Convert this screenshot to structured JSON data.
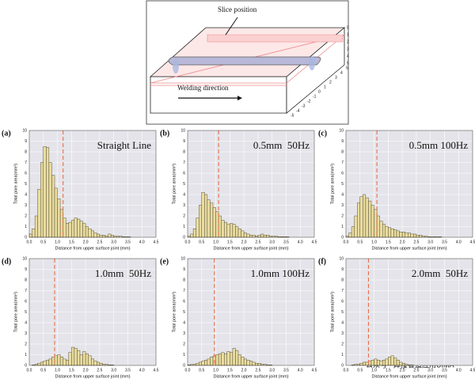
{
  "diagram": {
    "slice_label": "Slice position",
    "direction_label": "Welding direction",
    "vertical_scale": [
      "0",
      "1",
      "2",
      "3",
      "4",
      "5"
    ],
    "depth_scale": [
      "5",
      "4",
      "3",
      "2",
      "1",
      "0",
      "-1",
      "-2",
      "-3",
      "-4",
      "-5"
    ]
  },
  "watermark": "公众号 · 焊接智造应用UIMA",
  "chart_data": [
    {
      "type": "histogram",
      "panel": "(a)",
      "annotation": "Straight Line",
      "xlabel": "Distance from upper surface joint (mm)",
      "ylabel": "Total pore area(mm²)",
      "color": "#e9dca0",
      "edge": "#3a3420",
      "vline": 1.2,
      "vline_color": "#e8704a",
      "grid": true,
      "bins": [
        0,
        0.1,
        0.2,
        0.3,
        0.4,
        0.5,
        0.6,
        0.7,
        0.8,
        0.9,
        1.0,
        1.1,
        1.2,
        1.3,
        1.4,
        1.5,
        1.6,
        1.7,
        1.8,
        1.9,
        2.0,
        2.1,
        2.2,
        2.3,
        2.4,
        2.5,
        2.6,
        2.7,
        2.8,
        2.9,
        3.0,
        3.1,
        3.2,
        3.3,
        3.4,
        3.5,
        3.6
      ],
      "values": [
        0.3,
        0.8,
        2.0,
        4.5,
        7.0,
        8.5,
        8.4,
        7.0,
        5.8,
        4.6,
        3.6,
        2.6,
        1.8,
        1.3,
        1.4,
        1.6,
        1.8,
        1.7,
        1.5,
        1.3,
        1.0,
        0.8,
        0.6,
        0.4,
        0.3,
        0.2,
        0.2,
        0.1,
        0.3,
        0.2,
        0.1,
        0.1,
        0.1,
        0.05,
        0.05,
        0.05
      ],
      "xlim": [
        0,
        4.5
      ],
      "ylim": [
        0,
        10
      ],
      "yticks": [
        0,
        1,
        2,
        3,
        4,
        5,
        6,
        7,
        8,
        9,
        10
      ],
      "xticks": [
        {
          "value": 0,
          "label": "0.0"
        },
        {
          "value": 0.5,
          "label": "0.5"
        },
        {
          "value": 1,
          "label": "1.0"
        },
        {
          "value": 1.5,
          "label": "1.5"
        },
        {
          "value": 2,
          "label": "2.0"
        },
        {
          "value": 2.5,
          "label": "2.5"
        },
        {
          "value": 3,
          "label": "3.0"
        },
        {
          "value": 3.5,
          "label": "3.5"
        },
        {
          "value": 4,
          "label": "4.0"
        },
        {
          "value": 4.5,
          "label": "4.5"
        }
      ]
    },
    {
      "type": "histogram",
      "panel": "(b)",
      "annotation": "0.5mm  50Hz",
      "xlabel": "Distance from upper surface joint (mm)",
      "ylabel": "Total pore area(mm²)",
      "color": "#e9dca0",
      "edge": "#3a3420",
      "vline": 1.1,
      "vline_color": "#e8704a",
      "grid": true,
      "bins": [
        0,
        0.1,
        0.2,
        0.3,
        0.4,
        0.5,
        0.6,
        0.7,
        0.8,
        0.9,
        1.0,
        1.1,
        1.2,
        1.3,
        1.4,
        1.5,
        1.6,
        1.7,
        1.8,
        1.9,
        2.0,
        2.1,
        2.2,
        2.3,
        2.4,
        2.5,
        2.6,
        2.7,
        2.8,
        2.9,
        3.0,
        3.1,
        3.2,
        3.3,
        3.4,
        3.5,
        3.6
      ],
      "values": [
        0.1,
        0.3,
        0.8,
        1.8,
        3.0,
        4.2,
        4.0,
        3.5,
        3.2,
        2.8,
        2.4,
        2.0,
        1.6,
        1.4,
        1.2,
        1.3,
        1.2,
        1.0,
        0.8,
        0.6,
        0.4,
        0.3,
        0.2,
        0.2,
        0.1,
        0.2,
        0.3,
        0.2,
        0.2,
        0.1,
        0.1,
        0.1,
        0.05,
        0.05,
        0.05,
        0.05
      ],
      "xlim": [
        0,
        4.5
      ],
      "ylim": [
        0,
        10
      ],
      "yticks": [
        0,
        1,
        2,
        3,
        4,
        5,
        6,
        7,
        8,
        9,
        10
      ],
      "xticks": [
        {
          "value": 0,
          "label": "0.0"
        },
        {
          "value": 0.5,
          "label": "0.5"
        },
        {
          "value": 1,
          "label": "1.0"
        },
        {
          "value": 1.5,
          "label": "1.5"
        },
        {
          "value": 2,
          "label": "2.0"
        },
        {
          "value": 2.5,
          "label": "2.5"
        },
        {
          "value": 3,
          "label": "3.0"
        },
        {
          "value": 3.5,
          "label": "3.5"
        },
        {
          "value": 4,
          "label": "4.0"
        },
        {
          "value": 4.5,
          "label": "4.5"
        }
      ]
    },
    {
      "type": "histogram",
      "panel": "(c)",
      "annotation": "0.5mm 100Hz",
      "xlabel": "Distance from upper surface joint (mm)",
      "ylabel": "Total pore area(mm²)",
      "color": "#e9dca0",
      "edge": "#3a3420",
      "vline": 1.1,
      "vline_color": "#e8704a",
      "grid": true,
      "bins": [
        0,
        0.1,
        0.2,
        0.3,
        0.4,
        0.5,
        0.6,
        0.7,
        0.8,
        0.9,
        1.0,
        1.1,
        1.2,
        1.3,
        1.4,
        1.5,
        1.6,
        1.7,
        1.8,
        1.9,
        2.0,
        2.1,
        2.2,
        2.3,
        2.4,
        2.5,
        2.6,
        2.7,
        2.8,
        2.9,
        3.0,
        3.1,
        3.2,
        3.3,
        3.4,
        3.5,
        3.6
      ],
      "values": [
        0.1,
        0.4,
        1.0,
        2.0,
        3.2,
        3.8,
        4.0,
        3.7,
        3.4,
        3.0,
        2.6,
        2.0,
        1.5,
        1.2,
        1.0,
        0.9,
        0.8,
        0.7,
        0.6,
        0.5,
        0.5,
        0.4,
        0.4,
        0.3,
        0.3,
        0.2,
        0.2,
        0.1,
        0.1,
        0.05,
        0.05,
        0.05,
        0.05,
        0.05,
        0,
        0
      ],
      "xlim": [
        0,
        4.5
      ],
      "ylim": [
        0,
        10
      ],
      "yticks": [
        0,
        1,
        2,
        3,
        4,
        5,
        6,
        7,
        8,
        9,
        10
      ],
      "xticks": [
        {
          "value": 0,
          "label": "0.0"
        },
        {
          "value": 0.5,
          "label": "0.5"
        },
        {
          "value": 1,
          "label": "1.0"
        },
        {
          "value": 1.5,
          "label": "1.5"
        },
        {
          "value": 2,
          "label": "2.0"
        },
        {
          "value": 2.5,
          "label": "2.5"
        },
        {
          "value": 3,
          "label": "3.0"
        },
        {
          "value": 3.5,
          "label": "3.5"
        },
        {
          "value": 4,
          "label": "4.0"
        },
        {
          "value": 4.5,
          "label": "4.5"
        }
      ]
    },
    {
      "type": "histogram",
      "panel": "(d)",
      "annotation": "1.0mm  50Hz",
      "xlabel": "Distance from upper surface joint (mm)",
      "ylabel": "Total pore area(mm²)",
      "color": "#e9dca0",
      "edge": "#3a3420",
      "vline": 0.9,
      "vline_color": "#e8704a",
      "grid": true,
      "bins": [
        0,
        0.1,
        0.2,
        0.3,
        0.4,
        0.5,
        0.6,
        0.7,
        0.8,
        0.9,
        1.0,
        1.1,
        1.2,
        1.3,
        1.4,
        1.5,
        1.6,
        1.7,
        1.8,
        1.9,
        2.0,
        2.1,
        2.2,
        2.3,
        2.4,
        2.5,
        2.6,
        2.7,
        2.8,
        2.9,
        3.0,
        3.1,
        3.2,
        3.3,
        3.4,
        3.5,
        3.6
      ],
      "values": [
        0,
        0.05,
        0.1,
        0.2,
        0.3,
        0.4,
        0.5,
        0.6,
        0.8,
        0.9,
        1.0,
        0.8,
        0.6,
        0.5,
        1.2,
        1.7,
        1.6,
        1.4,
        1.0,
        1.3,
        1.1,
        0.9,
        0.6,
        0.4,
        0.3,
        0.2,
        0.1,
        0.1,
        0.05,
        0.05,
        0,
        0,
        0,
        0,
        0,
        0
      ],
      "xlim": [
        0,
        4.5
      ],
      "ylim": [
        0,
        10
      ],
      "yticks": [
        0,
        1,
        2,
        3,
        4,
        5,
        6,
        7,
        8,
        9,
        10
      ],
      "xticks": [
        {
          "value": 0,
          "label": "0.0"
        },
        {
          "value": 0.5,
          "label": "0.5"
        },
        {
          "value": 1,
          "label": "1.0"
        },
        {
          "value": 1.5,
          "label": "1.5"
        },
        {
          "value": 2,
          "label": "2.0"
        },
        {
          "value": 2.5,
          "label": "2.5"
        },
        {
          "value": 3,
          "label": "3.0"
        },
        {
          "value": 3.5,
          "label": "3.5"
        },
        {
          "value": 4,
          "label": "4.0"
        },
        {
          "value": 4.5,
          "label": "4.5"
        }
      ]
    },
    {
      "type": "histogram",
      "panel": "(e)",
      "annotation": "1.0mm 100Hz",
      "xlabel": "Distance from upper surface joint (mm)",
      "ylabel": "Total pore area(mm²)",
      "color": "#e9dca0",
      "edge": "#3a3420",
      "vline": 0.95,
      "vline_color": "#e8704a",
      "grid": true,
      "bins": [
        0,
        0.1,
        0.2,
        0.3,
        0.4,
        0.5,
        0.6,
        0.7,
        0.8,
        0.9,
        1.0,
        1.1,
        1.2,
        1.3,
        1.4,
        1.5,
        1.6,
        1.7,
        1.8,
        1.9,
        2.0,
        2.1,
        2.2,
        2.3,
        2.4,
        2.5,
        2.6,
        2.7,
        2.8,
        2.9,
        3.0,
        3.1,
        3.2,
        3.3,
        3.4,
        3.5,
        3.6
      ],
      "values": [
        0.05,
        0.1,
        0.1,
        0.2,
        0.3,
        0.4,
        0.5,
        0.6,
        0.8,
        0.9,
        1.0,
        1.1,
        1.2,
        1.1,
        1.3,
        1.2,
        1.6,
        1.4,
        1.0,
        0.8,
        0.6,
        0.5,
        0.4,
        0.3,
        0.2,
        0.2,
        0.1,
        0.1,
        0.05,
        0.05,
        0,
        0,
        0,
        0,
        0,
        0
      ],
      "xlim": [
        0,
        4.5
      ],
      "ylim": [
        0,
        10
      ],
      "yticks": [
        0,
        1,
        2,
        3,
        4,
        5,
        6,
        7,
        8,
        9,
        10
      ],
      "xticks": [
        {
          "value": 0,
          "label": "0.0"
        },
        {
          "value": 0.5,
          "label": "0.5"
        },
        {
          "value": 1,
          "label": "1.0"
        },
        {
          "value": 1.5,
          "label": "1.5"
        },
        {
          "value": 2,
          "label": "2.0"
        },
        {
          "value": 2.5,
          "label": "2.5"
        },
        {
          "value": 3,
          "label": "3.0"
        },
        {
          "value": 3.5,
          "label": "3.5"
        },
        {
          "value": 4,
          "label": "4.0"
        },
        {
          "value": 4.5,
          "label": "4.5"
        }
      ]
    },
    {
      "type": "histogram",
      "panel": "(f)",
      "annotation": "2.0mm  50Hz",
      "xlabel": "Distance from upper surface joint (mm)",
      "ylabel": "Total pore area(mm²)",
      "color": "#e9dca0",
      "edge": "#3a3420",
      "vline": 0.8,
      "vline_color": "#e8704a",
      "grid": true,
      "bins": [
        0,
        0.1,
        0.2,
        0.3,
        0.4,
        0.5,
        0.6,
        0.7,
        0.8,
        0.9,
        1.0,
        1.1,
        1.2,
        1.3,
        1.4,
        1.5,
        1.6,
        1.7,
        1.8,
        1.9,
        2.0,
        2.1,
        2.2,
        2.3,
        2.4,
        2.5,
        2.6,
        2.7,
        2.8,
        2.9,
        3.0,
        3.1,
        3.2,
        3.3,
        3.4,
        3.5,
        3.6
      ],
      "values": [
        0,
        0,
        0.05,
        0.1,
        0.1,
        0.2,
        0.3,
        0.3,
        0.4,
        0.5,
        0.6,
        0.5,
        0.4,
        0.5,
        0.6,
        0.8,
        0.9,
        0.7,
        0.5,
        0.3,
        0.2,
        0.1,
        0.05,
        0.05,
        0,
        0,
        0,
        0,
        0,
        0,
        0,
        0,
        0,
        0,
        0,
        0
      ],
      "xlim": [
        0,
        4.5
      ],
      "ylim": [
        0,
        10
      ],
      "yticks": [
        0,
        1,
        2,
        3,
        4,
        5,
        6,
        7,
        8,
        9,
        10
      ],
      "xticks": [
        {
          "value": 0,
          "label": "0.0"
        },
        {
          "value": 0.5,
          "label": "0.5"
        },
        {
          "value": 1,
          "label": "1.0"
        },
        {
          "value": 1.5,
          "label": "1.5"
        },
        {
          "value": 2,
          "label": "2.0"
        },
        {
          "value": 2.5,
          "label": "2.5"
        },
        {
          "value": 3,
          "label": "3.0"
        },
        {
          "value": 3.5,
          "label": "3.5"
        },
        {
          "value": 4,
          "label": "4.0"
        },
        {
          "value": 4.5,
          "label": "4.5"
        }
      ]
    }
  ]
}
